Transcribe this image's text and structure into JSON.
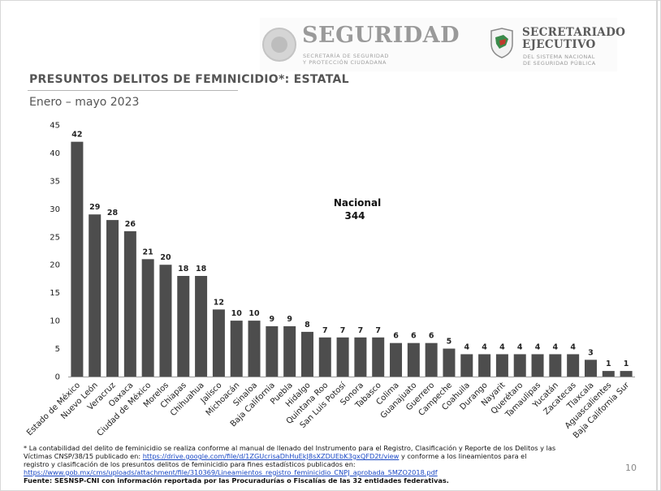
{
  "header": {
    "left_brand": "SEGURIDAD",
    "left_sub1": "SECRETARÍA DE SEGURIDAD",
    "left_sub2": "Y PROTECCIÓN CIUDADANA",
    "right_brand1": "SECRETARIADO",
    "right_brand2": "EJECUTIVO",
    "right_sub1": "DEL SISTEMA NACIONAL",
    "right_sub2": "DE SEGURIDAD PÚBLICA"
  },
  "title": "PRESUNTOS DELITOS DE FEMINICIDIO*: ESTATAL",
  "subtitle": "Enero – mayo 2023",
  "colors": {
    "bar": "#4d4d4d",
    "title": "#555555",
    "link": "#1a48c4"
  },
  "chart_data": {
    "type": "bar",
    "categories": [
      "Estado de México",
      "Nuevo León",
      "Veracruz",
      "Oaxaca",
      "Ciudad de México",
      "Morelos",
      "Chiapas",
      "Chihuahua",
      "Jalisco",
      "Michoacán",
      "Sinaloa",
      "Baja California",
      "Puebla",
      "Hidalgo",
      "Quintana Roo",
      "San Luis Potosí",
      "Sonora",
      "Tabasco",
      "Colima",
      "Guanajuato",
      "Guerrero",
      "Campeche",
      "Coahuila",
      "Durango",
      "Nayarit",
      "Querétaro",
      "Tamaulipas",
      "Yucatán",
      "Zacatecas",
      "Tlaxcala",
      "Aguascalientes",
      "Baja California Sur"
    ],
    "values": [
      42,
      29,
      28,
      26,
      21,
      20,
      18,
      18,
      12,
      10,
      10,
      9,
      9,
      8,
      7,
      7,
      7,
      7,
      6,
      6,
      6,
      5,
      4,
      4,
      4,
      4,
      4,
      4,
      4,
      3,
      1,
      1
    ],
    "ylim": [
      0,
      45
    ],
    "yticks": [
      0,
      5,
      10,
      15,
      20,
      25,
      30,
      35,
      40,
      45
    ],
    "data_labels": true,
    "grid": false,
    "annotation_label": "Nacional",
    "annotation_value": "344"
  },
  "footnote": {
    "line1": "* La contabilidad del delito de feminicidio se realiza conforme al manual de llenado del Instrumento para el Registro, Clasificación y Reporte de los Delitos y las",
    "line2_pre": "Víctimas CNSP/38/15 publicado en: ",
    "link1": "https://drive.google.com/file/d/1ZGUcrisaDhHuEkJ8sXZDUEbK3gxQFD2t/view",
    "line2_post": " y conforme a los lineamientos para el",
    "line3": "registro y clasificación de los presuntos delitos de feminicidio para fines estadísticos publicados en:",
    "link2": "https://www.gob.mx/cms/uploads/attachment/file/310369/Lineamientos_registro_feminicidio_CNPJ_aprobada_5MZO2018.pdf",
    "source": "Fuente: SESNSP-CNI con información reportada por las Procuradurías o Fiscalías de las 32 entidades federativas."
  },
  "page_number": "10"
}
